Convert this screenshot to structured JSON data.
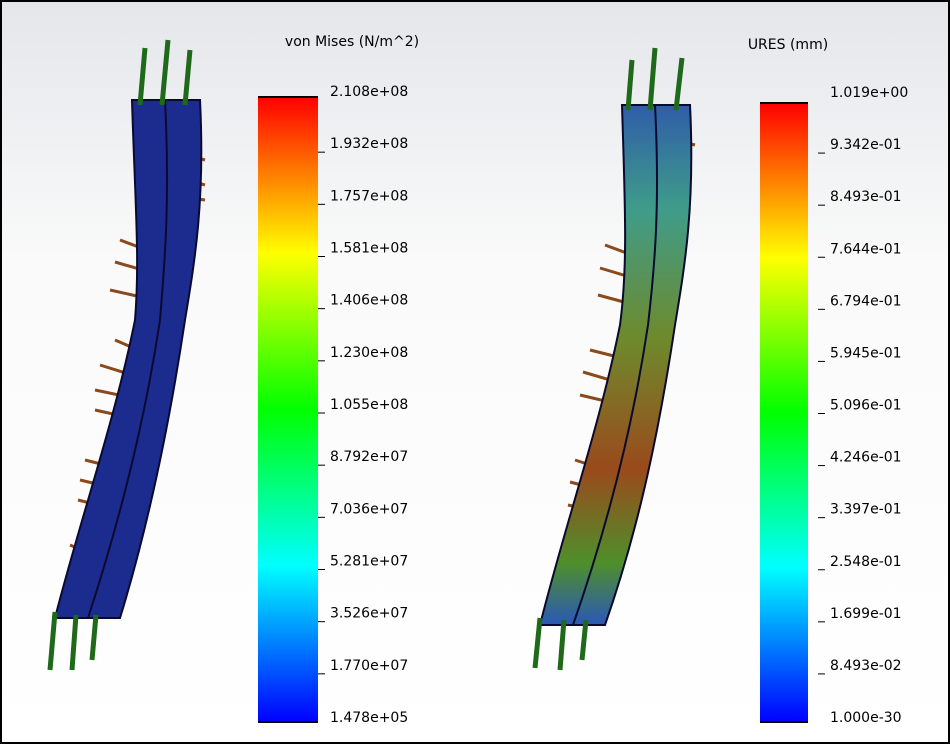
{
  "panels": [
    {
      "title": "von Mises (N/m^2)",
      "legend_labels": [
        "2.108e+08",
        "1.932e+08",
        "1.757e+08",
        "1.581e+08",
        "1.406e+08",
        "1.230e+08",
        "1.055e+08",
        "8.792e+07",
        "7.036e+07",
        "5.281e+07",
        "3.526e+07",
        "1.770e+07",
        "1.478e+05"
      ]
    },
    {
      "title": "URES (mm)",
      "legend_labels": [
        "1.019e+00",
        "9.342e-01",
        "8.493e-01",
        "7.644e-01",
        "6.794e-01",
        "5.945e-01",
        "5.096e-01",
        "4.246e-01",
        "3.397e-01",
        "2.548e-01",
        "1.699e-01",
        "8.493e-02",
        "1.000e-30"
      ]
    }
  ]
}
